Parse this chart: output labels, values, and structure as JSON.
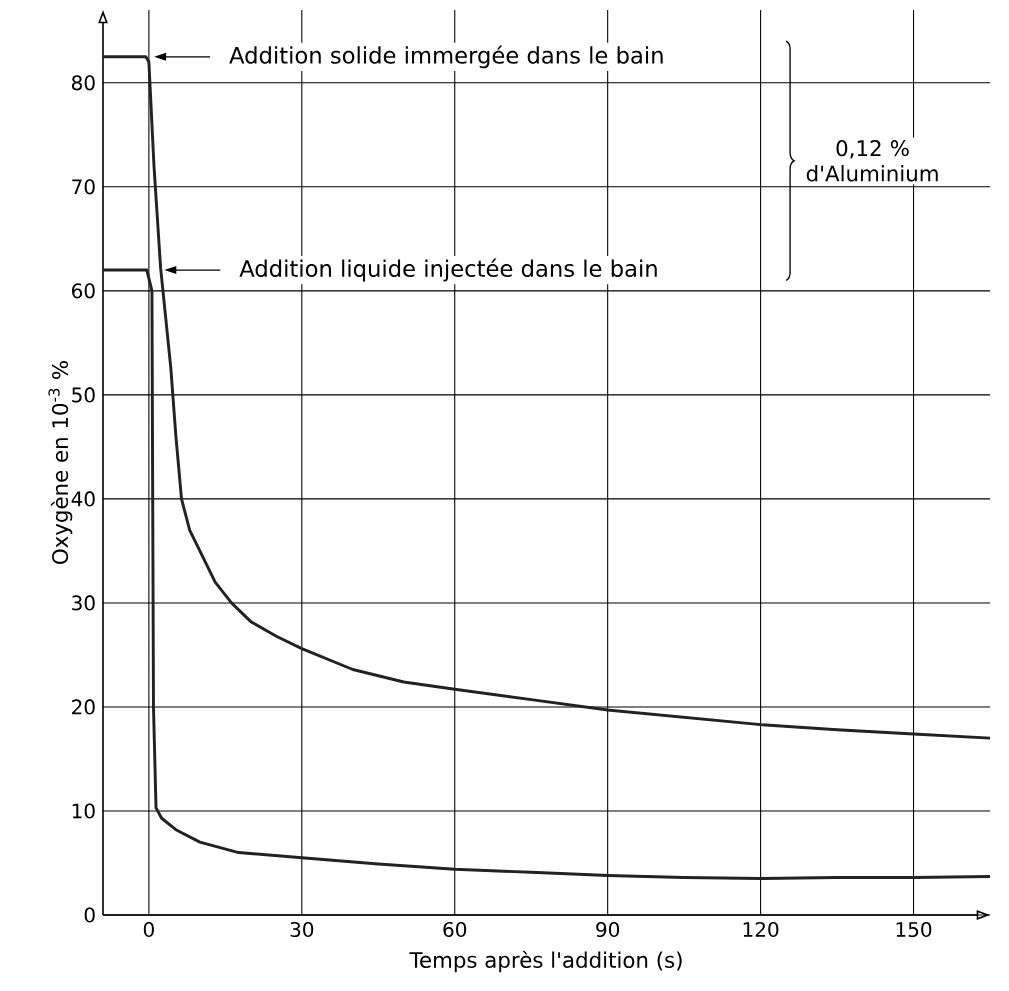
{
  "chart_data": {
    "type": "line",
    "xlabel": "Temps après l'addition (s)",
    "ylabel": "Oxygène en 10$^{-3}$ %",
    "xlim": [
      -9,
      165
    ],
    "ylim": [
      0,
      87
    ],
    "xticks": [
      0,
      30,
      60,
      90,
      120,
      150
    ],
    "yticks": [
      0,
      10,
      20,
      30,
      40,
      50,
      60,
      70,
      80
    ],
    "grid": true,
    "series": [
      {
        "color": "#222222",
        "x": [
          -9,
          -0.6,
          0,
          1,
          2.3,
          4.3,
          5.3,
          6.4,
          8,
          10,
          13,
          16.2,
          20,
          25,
          30,
          40,
          50,
          60,
          75,
          90,
          105,
          120,
          135,
          150,
          165
        ],
        "values": [
          82.5,
          82.5,
          82,
          72,
          62.2,
          52.6,
          46,
          40,
          37,
          35,
          32,
          30,
          28.2,
          26.8,
          25.6,
          23.6,
          22.4,
          21.7,
          20.7,
          19.7,
          19,
          18.3,
          17.8,
          17.4,
          17
        ]
      },
      {
        "color": "#222222",
        "x": [
          -9,
          -0.4,
          0.6,
          0.9,
          1.4,
          2.5,
          5.3,
          10,
          17.6,
          30,
          45,
          60,
          75,
          90,
          105,
          120,
          135,
          150,
          165
        ],
        "values": [
          62,
          62,
          60,
          20,
          10.3,
          9.3,
          8.2,
          7,
          6.0,
          5.5,
          4.9,
          4.4,
          4.1,
          3.8,
          3.6,
          3.5,
          3.6,
          3.6,
          3.7
        ]
      }
    ],
    "annotations": [
      "Addition solide immergée dans le bain",
      "Addition liquide injectée dans le bain",
      "0,12 % d'Aluminium"
    ]
  }
}
